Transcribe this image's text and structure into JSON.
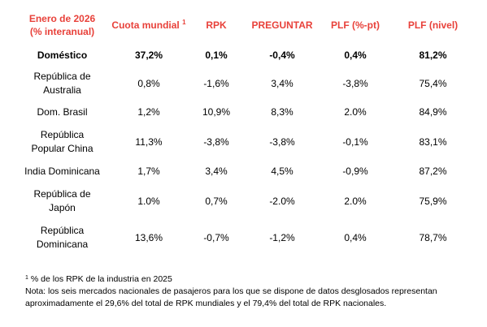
{
  "table": {
    "headers": {
      "region_line1": "Enero de 2026",
      "region_line2": "(% interanual)",
      "share": "Cuota mundial",
      "share_sup": "1",
      "rpk": "RPK",
      "ask": "PREGUNTAR",
      "plf_pt": "PLF (%-pt)",
      "plf_level": "PLF (nivel)"
    },
    "rows": [
      {
        "region": "Doméstico",
        "share": "37,2%",
        "rpk": "0,1%",
        "ask": "-0,4%",
        "plf_pt": "0,4%",
        "plf_level": "81,2%"
      },
      {
        "region_line1": "República de",
        "region_line2": "Australia",
        "share": "0,8%",
        "rpk": "-1,6%",
        "ask": "3,4%",
        "plf_pt": "-3,8%",
        "plf_level": "75,4%"
      },
      {
        "region": "Dom. Brasil",
        "share": "1,2%",
        "rpk": "10,9%",
        "ask": "8,3%",
        "plf_pt": "2.0%",
        "plf_level": "84,9%"
      },
      {
        "region_line1": "República",
        "region_line2": "Popular China",
        "share": "11,3%",
        "rpk": "-3,8%",
        "ask": "-3,8%",
        "plf_pt": "-0,1%",
        "plf_level": "83,1%"
      },
      {
        "region": "India Dominicana",
        "share": "1,7%",
        "rpk": "3,4%",
        "ask": "4,5%",
        "plf_pt": "-0,9%",
        "plf_level": "87,2%"
      },
      {
        "region_line1": "República de",
        "region_line2": "Japón",
        "share": "1.0%",
        "rpk": "0,7%",
        "ask": "-2.0%",
        "plf_pt": "2.0%",
        "plf_level": "75,9%"
      },
      {
        "region_line1": "República",
        "region_line2": "Dominicana",
        "share": "13,6%",
        "rpk": "-0,7%",
        "ask": "-1,2%",
        "plf_pt": "0,4%",
        "plf_level": "78,7%"
      }
    ]
  },
  "notes": {
    "footnote_marker": "1",
    "footnote_text": "% de los RPK de la industria en 2025",
    "note_line1": "Nota: los seis mercados nacionales de pasajeros para los que se dispone de datos desglosados representan",
    "note_line2": "aproximadamente el 29,6% del total de RPK mundiales y el 79,4% del total de RPK nacionales."
  }
}
